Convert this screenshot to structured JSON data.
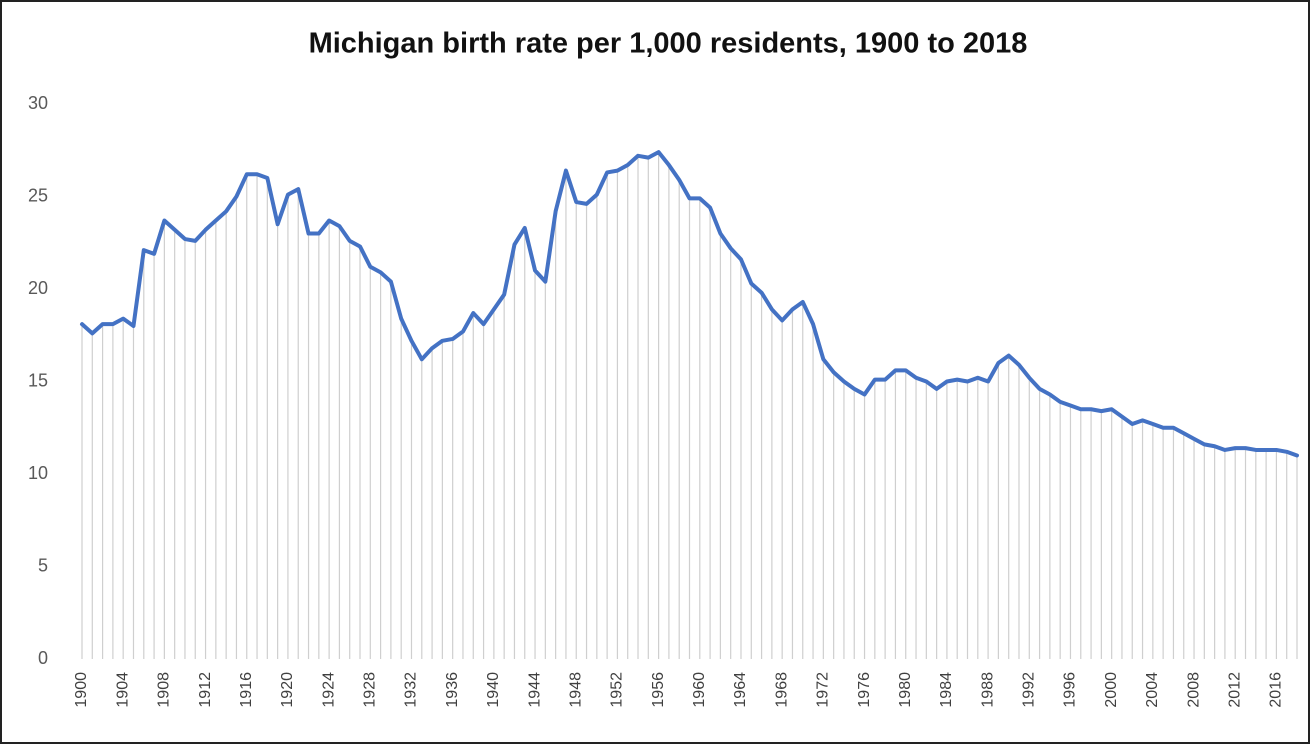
{
  "chart_data": {
    "type": "line",
    "title": "Michigan birth rate per 1,000 residents, 1900 to 2018",
    "x": [
      1900,
      1901,
      1902,
      1903,
      1904,
      1905,
      1906,
      1907,
      1908,
      1909,
      1910,
      1911,
      1912,
      1913,
      1914,
      1915,
      1916,
      1917,
      1918,
      1919,
      1920,
      1921,
      1922,
      1923,
      1924,
      1925,
      1926,
      1927,
      1928,
      1929,
      1930,
      1931,
      1932,
      1933,
      1934,
      1935,
      1936,
      1937,
      1938,
      1939,
      1940,
      1941,
      1942,
      1943,
      1944,
      1945,
      1946,
      1947,
      1948,
      1949,
      1950,
      1951,
      1952,
      1953,
      1954,
      1955,
      1956,
      1957,
      1958,
      1959,
      1960,
      1961,
      1962,
      1963,
      1964,
      1965,
      1966,
      1967,
      1968,
      1969,
      1970,
      1971,
      1972,
      1973,
      1974,
      1975,
      1976,
      1977,
      1978,
      1979,
      1980,
      1981,
      1982,
      1983,
      1984,
      1985,
      1986,
      1987,
      1988,
      1989,
      1990,
      1991,
      1992,
      1993,
      1994,
      1995,
      1996,
      1997,
      1998,
      1999,
      2000,
      2001,
      2002,
      2003,
      2004,
      2005,
      2006,
      2007,
      2008,
      2009,
      2010,
      2011,
      2012,
      2013,
      2014,
      2015,
      2016,
      2017,
      2018
    ],
    "series": [
      {
        "color": "#4472c4",
        "values": [
          18.1,
          17.6,
          18.1,
          18.1,
          18.4,
          18.0,
          22.1,
          21.9,
          23.7,
          23.2,
          22.7,
          22.6,
          23.2,
          23.7,
          24.2,
          25.0,
          26.2,
          26.2,
          26.0,
          23.5,
          25.1,
          25.4,
          23.0,
          23.0,
          23.7,
          23.4,
          22.6,
          22.3,
          21.2,
          20.9,
          20.4,
          18.4,
          17.2,
          16.2,
          16.8,
          17.2,
          17.3,
          17.7,
          18.7,
          18.1,
          18.9,
          19.7,
          22.4,
          23.3,
          21.0,
          20.4,
          24.2,
          26.4,
          24.7,
          24.6,
          25.1,
          26.3,
          26.4,
          26.7,
          27.2,
          27.1,
          27.4,
          26.7,
          25.9,
          24.9,
          24.9,
          24.4,
          23.0,
          22.2,
          21.6,
          20.3,
          19.8,
          18.9,
          18.3,
          18.9,
          19.3,
          18.1,
          16.2,
          15.5,
          15.0,
          14.6,
          14.3,
          15.1,
          15.1,
          15.6,
          15.6,
          15.2,
          15.0,
          14.6,
          15.0,
          15.1,
          15.0,
          15.2,
          15.0,
          16.0,
          16.4,
          15.9,
          15.2,
          14.6,
          14.3,
          13.9,
          13.7,
          13.5,
          13.5,
          13.4,
          13.5,
          13.1,
          12.7,
          12.9,
          12.7,
          12.5,
          12.5,
          12.2,
          11.9,
          11.6,
          11.5,
          11.3,
          11.4,
          11.4,
          11.3,
          11.3,
          11.3,
          11.2,
          11.0
        ]
      }
    ],
    "xlim": [
      1900,
      2018
    ],
    "xticks": [
      1900,
      1904,
      1908,
      1912,
      1916,
      1920,
      1924,
      1928,
      1932,
      1936,
      1940,
      1944,
      1948,
      1952,
      1956,
      1960,
      1964,
      1968,
      1972,
      1976,
      1980,
      1984,
      1988,
      1992,
      1996,
      2000,
      2004,
      2008,
      2012,
      2016
    ],
    "ylim": [
      0,
      30
    ],
    "yticks": [
      0,
      5,
      10,
      15,
      20,
      25,
      30
    ],
    "grid": false,
    "drop_lines": true
  }
}
